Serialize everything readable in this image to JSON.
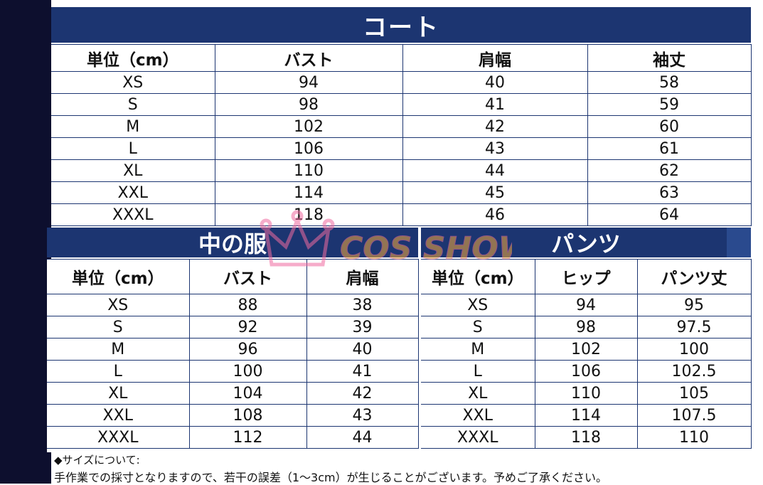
{
  "coat": {
    "title": "コート",
    "headers": [
      "単位（cm）",
      "バスト",
      "肩幅",
      "袖丈"
    ],
    "rows": [
      [
        "XS",
        "94",
        "40",
        "58"
      ],
      [
        "S",
        "98",
        "41",
        "59"
      ],
      [
        "M",
        "102",
        "42",
        "60"
      ],
      [
        "L",
        "106",
        "43",
        "61"
      ],
      [
        "XL",
        "110",
        "44",
        "62"
      ],
      [
        "XXL",
        "114",
        "45",
        "63"
      ],
      [
        "XXXL",
        "118",
        "46",
        "64"
      ]
    ]
  },
  "inner": {
    "title": "中の服",
    "headers": [
      "単位（cm）",
      "バスト",
      "肩幅"
    ],
    "rows": [
      [
        "XS",
        "88",
        "38"
      ],
      [
        "S",
        "92",
        "39"
      ],
      [
        "M",
        "96",
        "40"
      ],
      [
        "L",
        "100",
        "41"
      ],
      [
        "XL",
        "104",
        "42"
      ],
      [
        "XXL",
        "108",
        "43"
      ],
      [
        "XXXL",
        "112",
        "44"
      ]
    ]
  },
  "pants": {
    "title": "パンツ",
    "headers": [
      "単位（cm）",
      "ヒップ",
      "パンツ丈"
    ],
    "rows": [
      [
        "XS",
        "94",
        "95"
      ],
      [
        "S",
        "98",
        "97.5"
      ],
      [
        "M",
        "102",
        "100"
      ],
      [
        "L",
        "106",
        "102.5"
      ],
      [
        "XL",
        "110",
        "105"
      ],
      [
        "XXL",
        "114",
        "107.5"
      ],
      [
        "XXXL",
        "118",
        "110"
      ]
    ]
  },
  "watermark": {
    "text": "COS SHOW",
    "icon": "crown-icon"
  },
  "notes": {
    "heading": "◆サイズについて:",
    "body": "手作業での採寸となりますので、若干の誤差（1～3cm）が生じることがございます。予めご了承ください。"
  },
  "colors": {
    "header": "#1c3571",
    "background_band": "#0d0f2e",
    "watermark": "#f06aa0"
  }
}
